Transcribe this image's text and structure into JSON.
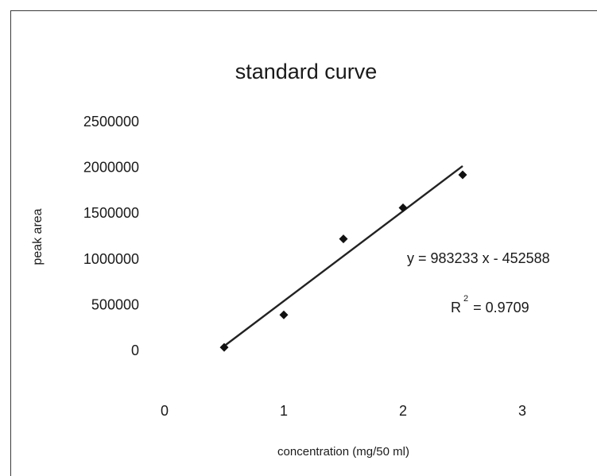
{
  "chart_data": {
    "type": "scatter",
    "title": "standard curve",
    "xlabel": "concentration  (mg/50  ml)",
    "ylabel": "peak area",
    "xlim": [
      0,
      3
    ],
    "ylim": [
      0,
      2500000
    ],
    "x_ticks": [
      "0",
      "1",
      "2",
      "3"
    ],
    "y_ticks": [
      "2500000",
      "2000000",
      "1500000",
      "1000000",
      "500000",
      "0"
    ],
    "grid": false,
    "legend": "none",
    "series": [
      {
        "marker": "diamond",
        "x": [
          0.5,
          1.0,
          1.5,
          2.0,
          2.5
        ],
        "y": [
          25000,
          380000,
          1210000,
          1550000,
          1910000
        ]
      }
    ],
    "trendline": {
      "type": "linear",
      "slope": 983233,
      "intercept": -452588,
      "x_range": [
        0.5,
        2.5
      ],
      "equation": "y = 983233 x - 452588",
      "r2_prefix": "R",
      "r2_superscript": "2",
      "r2_value": "= 0.9709"
    },
    "colors": {
      "marker": "#111111",
      "line": "#222222",
      "frame": "#3a3a3a"
    }
  }
}
